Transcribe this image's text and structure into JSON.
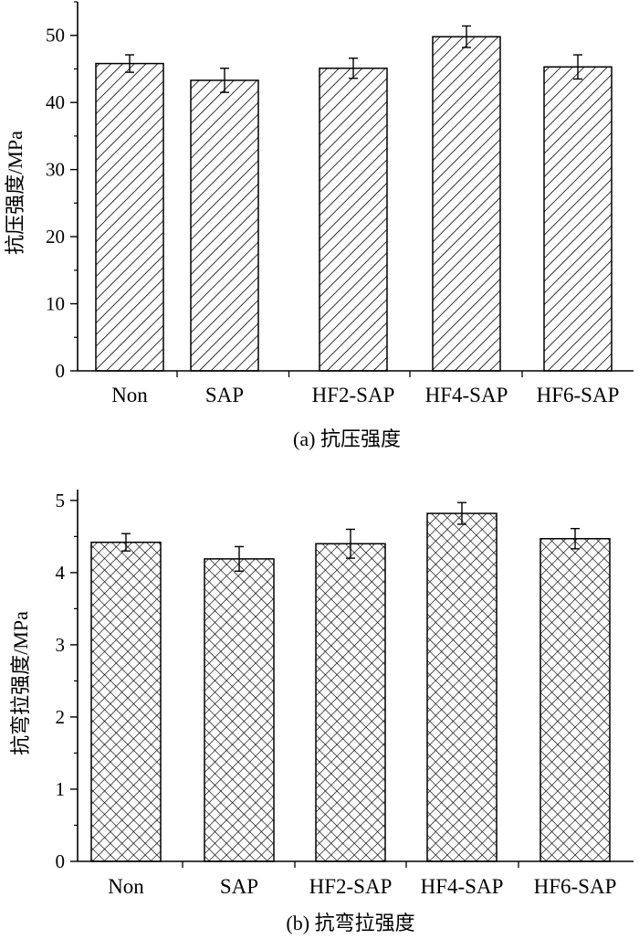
{
  "colors": {
    "axis": "#000000",
    "bar_fill": "#ffffff",
    "hatch": "#000000",
    "background": "#ffffff"
  },
  "chart_data": [
    {
      "type": "bar",
      "hatch": "diagonal",
      "caption": "(a) 抗压强度",
      "xlabel": "",
      "ylabel": "抗压强度/MPa",
      "categories": [
        "Non",
        "SAP",
        "HF2-SAP",
        "HF4-SAP",
        "HF6-SAP"
      ],
      "values": [
        45.8,
        43.3,
        45.1,
        49.8,
        45.3
      ],
      "errors": [
        1.3,
        1.8,
        1.5,
        1.6,
        1.8
      ],
      "ylim": [
        0,
        55
      ],
      "yticks": [
        0,
        10,
        20,
        30,
        40,
        50
      ],
      "ytick_labels": [
        "0",
        "10",
        "20",
        "30",
        "40",
        "50"
      ],
      "grid": false
    },
    {
      "type": "bar",
      "hatch": "crosshatch",
      "caption": "(b) 抗弯拉强度",
      "xlabel": "",
      "ylabel": "抗弯拉强度/MPa",
      "categories": [
        "Non",
        "SAP",
        "HF2-SAP",
        "HF4-SAP",
        "HF6-SAP"
      ],
      "values": [
        4.42,
        4.19,
        4.4,
        4.82,
        4.47
      ],
      "errors": [
        0.12,
        0.17,
        0.2,
        0.15,
        0.14
      ],
      "ylim": [
        0,
        5.15
      ],
      "yticks": [
        0,
        1,
        2,
        3,
        4,
        5
      ],
      "ytick_labels": [
        "0",
        "1",
        "2",
        "3",
        "4",
        "5"
      ],
      "grid": false
    }
  ]
}
